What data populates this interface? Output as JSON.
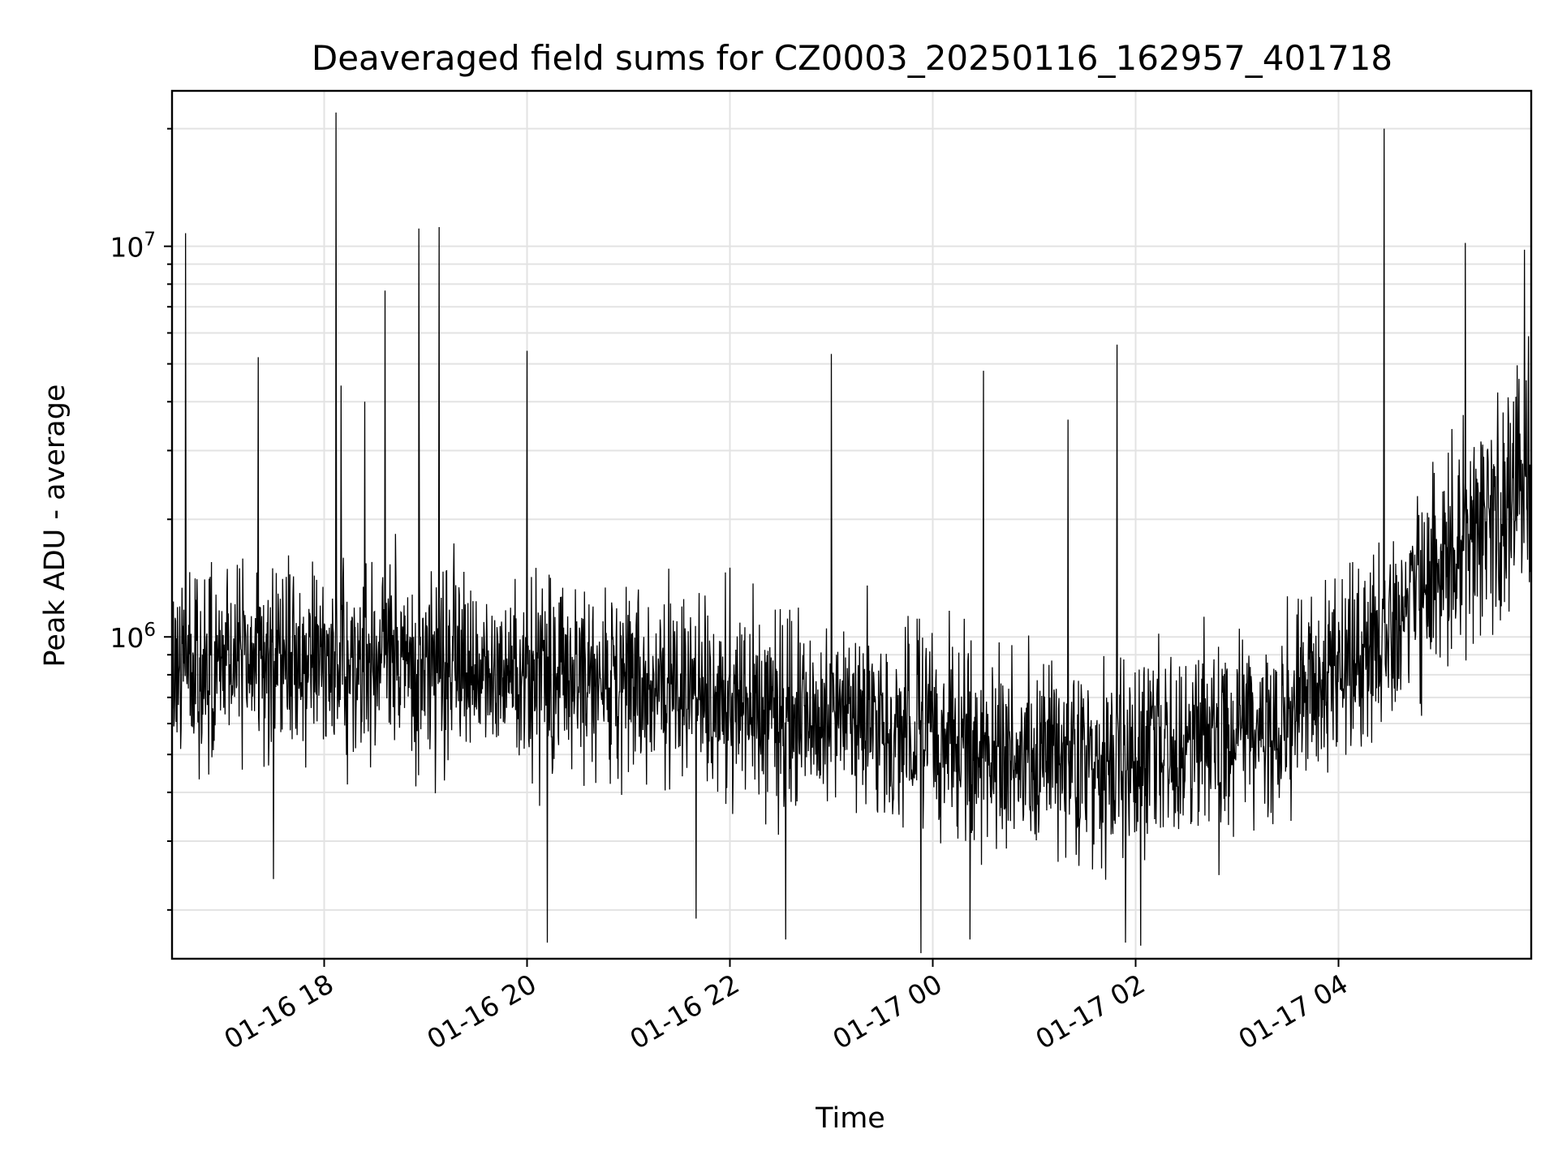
{
  "chart_data": {
    "type": "line",
    "title": "Deaveraged field sums for CZ0003_20250116_162957_401718",
    "xlabel": "Time",
    "ylabel": "Peak ADU - average",
    "yscale": "log",
    "xlim": [
      "2025-01-16 16:30",
      "2025-01-17 05:54"
    ],
    "ylim": [
      150000,
      25000000
    ],
    "grid": true,
    "x_ticks": [
      "01-16 18",
      "01-16 20",
      "01-16 22",
      "01-17 00",
      "01-17 02",
      "01-17 04"
    ],
    "y_ticks": [
      {
        "base": "10",
        "exp": "6",
        "value": 1000000
      },
      {
        "base": "10",
        "exp": "7",
        "value": 10000000
      }
    ],
    "series": [
      {
        "color": "#000000",
        "baseline": [
          [
            "2025-01-16 16:30",
            850000
          ],
          [
            "2025-01-16 18:00",
            900000
          ],
          [
            "2025-01-16 20:00",
            820000
          ],
          [
            "2025-01-16 22:00",
            680000
          ],
          [
            "2025-01-17 00:00",
            560000
          ],
          [
            "2025-01-17 01:30",
            460000
          ],
          [
            "2025-01-17 03:00",
            560000
          ],
          [
            "2025-01-17 04:00",
            800000
          ],
          [
            "2025-01-17 04:30",
            1100000
          ],
          [
            "2025-01-17 05:00",
            1500000
          ],
          [
            "2025-01-17 05:54",
            2600000
          ]
        ],
        "spikes": [
          [
            "2025-01-16 16:38",
            10800000
          ],
          [
            "2025-01-16 17:21",
            5200000
          ],
          [
            "2025-01-16 18:07",
            22000000
          ],
          [
            "2025-01-16 18:10",
            4400000
          ],
          [
            "2025-01-16 18:24",
            4000000
          ],
          [
            "2025-01-16 18:36",
            7700000
          ],
          [
            "2025-01-16 18:56",
            11100000
          ],
          [
            "2025-01-16 19:08",
            11200000
          ],
          [
            "2025-01-16 20:00",
            5400000
          ],
          [
            "2025-01-16 23:00",
            5300000
          ],
          [
            "2025-01-17 00:30",
            4800000
          ],
          [
            "2025-01-17 01:20",
            3600000
          ],
          [
            "2025-01-17 01:49",
            5600000
          ],
          [
            "2025-01-17 04:27",
            20000000
          ],
          [
            "2025-01-17 05:15",
            10200000
          ],
          [
            "2025-01-17 05:50",
            9800000
          ]
        ],
        "dips": [
          [
            "2025-01-16 17:30",
            240000
          ],
          [
            "2025-01-16 20:12",
            165000
          ],
          [
            "2025-01-16 21:40",
            190000
          ],
          [
            "2025-01-16 22:33",
            168000
          ],
          [
            "2025-01-16 23:53",
            155000
          ],
          [
            "2025-01-17 00:22",
            168000
          ],
          [
            "2025-01-17 01:54",
            165000
          ],
          [
            "2025-01-17 02:03",
            162000
          ]
        ]
      }
    ]
  }
}
